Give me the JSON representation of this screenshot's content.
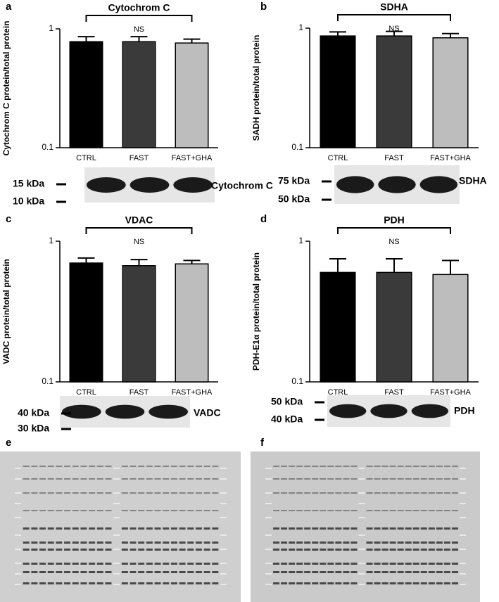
{
  "chart_data": [
    {
      "type": "bar",
      "panel": "a",
      "title": "Cytochrom C",
      "y_label": "Cytochrom C protein/total protein",
      "categories": [
        "CTRL",
        "FAST",
        "FAST+GHA"
      ],
      "values": [
        0.78,
        0.78,
        0.76
      ],
      "errors": [
        0.08,
        0.08,
        0.06
      ],
      "colors": [
        "#000000",
        "#3a3a3a",
        "#bdbdbd"
      ],
      "annotation": "NS",
      "log_scale": true,
      "ylim": [
        0.1,
        1
      ],
      "yticks": [
        1,
        0.1
      ],
      "blot": {
        "markers": [
          "15 kDa",
          "10 kDa"
        ],
        "label": "Cytochrom C"
      }
    },
    {
      "type": "bar",
      "panel": "b",
      "title": "SDHA",
      "y_label": "SADH protein/total protein",
      "categories": [
        "CTRL",
        "FAST",
        "FAST+GHA"
      ],
      "values": [
        0.86,
        0.86,
        0.83
      ],
      "errors": [
        0.07,
        0.08,
        0.07
      ],
      "colors": [
        "#000000",
        "#3a3a3a",
        "#bdbdbd"
      ],
      "annotation": "NS",
      "log_scale": true,
      "ylim": [
        0.1,
        1
      ],
      "yticks": [
        1,
        0.1
      ],
      "blot": {
        "markers": [
          "75 kDa",
          "50 kDa"
        ],
        "label": "SDHA"
      }
    },
    {
      "type": "bar",
      "panel": "c",
      "title": "VDAC",
      "y_label": "VADC protein/total protein",
      "categories": [
        "CTRL",
        "FAST",
        "FAST+GHA"
      ],
      "values": [
        0.7,
        0.67,
        0.69
      ],
      "errors": [
        0.06,
        0.07,
        0.04
      ],
      "colors": [
        "#000000",
        "#3a3a3a",
        "#bdbdbd"
      ],
      "annotation": "NS",
      "log_scale": true,
      "ylim": [
        0.1,
        1
      ],
      "yticks": [
        1,
        0.1
      ],
      "blot": {
        "markers": [
          "40 kDa",
          "30 kDa"
        ],
        "label": "VADC"
      }
    },
    {
      "type": "bar",
      "panel": "d",
      "title": "PDH",
      "y_label": "PDH-E1α protein/total protein",
      "categories": [
        "CTRL",
        "FAST",
        "FAST+GHA"
      ],
      "values": [
        0.6,
        0.6,
        0.58
      ],
      "errors": [
        0.15,
        0.15,
        0.15
      ],
      "colors": [
        "#000000",
        "#3a3a3a",
        "#bdbdbd"
      ],
      "annotation": "NS",
      "log_scale": true,
      "ylim": [
        0.1,
        1
      ],
      "yticks": [
        1,
        0.1
      ],
      "blot": {
        "markers": [
          "50 kDa",
          "40 kDa"
        ],
        "label": "PDH"
      }
    }
  ],
  "gel_panels": [
    "e",
    "f"
  ]
}
